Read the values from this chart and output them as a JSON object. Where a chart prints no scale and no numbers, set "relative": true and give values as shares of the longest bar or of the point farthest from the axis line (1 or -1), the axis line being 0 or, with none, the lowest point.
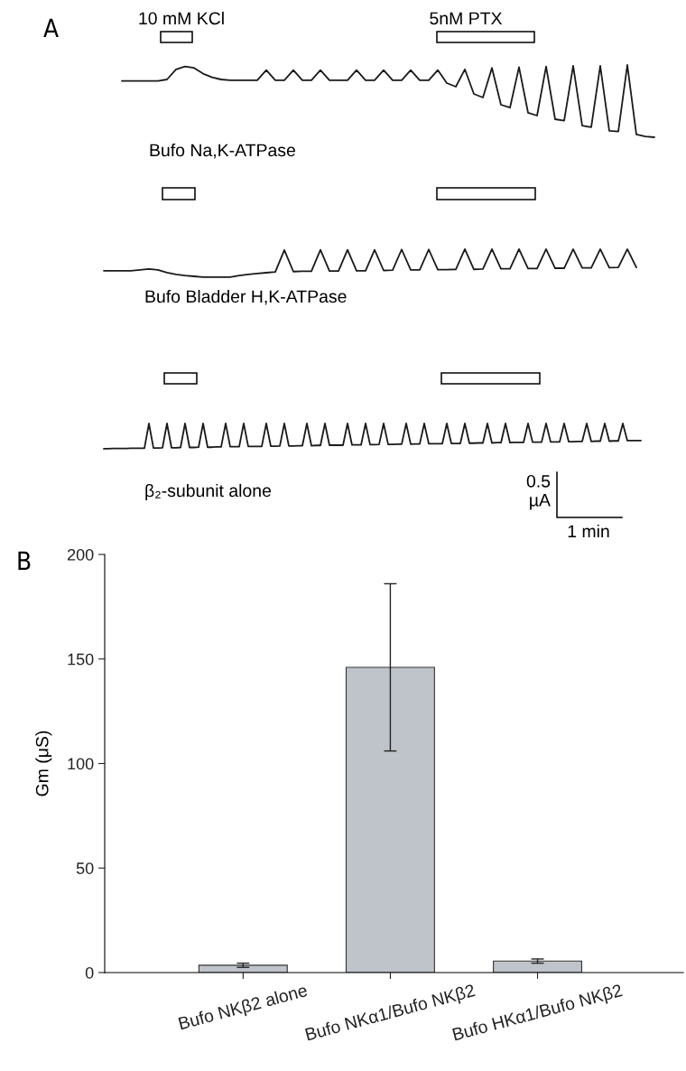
{
  "chart_data": [
    {
      "type": "line",
      "title": "A",
      "xlabel": "Bufo Na,K-ATPase",
      "relative": true,
      "annotations": [
        "10 mM KCl",
        "5nM PTX"
      ],
      "categories": [
        null,
        null,
        null,
        null,
        null,
        null,
        null,
        null,
        null,
        null,
        null,
        null,
        null,
        null,
        null,
        null,
        null,
        null,
        null,
        null,
        null,
        null,
        null,
        null,
        null,
        null,
        null,
        null,
        null,
        null,
        null,
        null,
        null,
        null,
        null,
        null,
        null,
        null,
        null,
        null,
        null,
        null,
        null,
        null,
        null,
        null,
        null,
        null,
        null,
        null,
        null,
        null,
        null,
        null,
        null,
        null,
        null,
        null,
        null,
        null
      ],
      "series": [
        {
          "color": "#1a1a1a",
          "values": [
            0.78,
            0.78,
            0.78,
            0.78,
            0.78,
            0.8,
            0.94,
            0.98,
            0.96,
            0.88,
            0.83,
            0.8,
            0.79,
            0.79,
            0.79,
            0.79,
            0.93,
            0.79,
            0.79,
            0.93,
            0.79,
            0.79,
            0.93,
            0.79,
            0.79,
            0.79,
            0.93,
            0.79,
            0.79,
            0.93,
            0.79,
            0.79,
            0.93,
            0.79,
            0.79,
            0.93,
            0.75,
            0.7,
            0.94,
            0.6,
            0.55,
            0.96,
            0.45,
            0.41,
            0.97,
            0.34,
            0.3,
            0.98,
            0.25,
            0.23,
            0.99,
            0.16,
            0.14,
            0.99,
            0.09,
            0.08,
            1,
            0.04,
            0.01,
            0
          ]
        }
      ]
    },
    {
      "type": "line",
      "xlabel": "Bufo Bladder H,K-ATPase",
      "relative": true,
      "categories": [
        null,
        null,
        null,
        null,
        null,
        null,
        null,
        null,
        null,
        null,
        null,
        null,
        null,
        null,
        null,
        null,
        null,
        null,
        null,
        null,
        null,
        null,
        null,
        null,
        null,
        null,
        null,
        null,
        null,
        null,
        null,
        null,
        null,
        null,
        null,
        null,
        null,
        null,
        null,
        null,
        null,
        null,
        null,
        null,
        null,
        null,
        null,
        null,
        null,
        null,
        null,
        null,
        null,
        null,
        null,
        null,
        null,
        null,
        null,
        null
      ],
      "series": [
        {
          "color": "#1a1a1a",
          "values": [
            0.23,
            0.23,
            0.23,
            0.23,
            0.26,
            0.29,
            0.26,
            0.16,
            0.1,
            0.06,
            0.03,
            0,
            0,
            0,
            0,
            0.06,
            0.1,
            0.13,
            0.16,
            0.19,
            0.97,
            0.2,
            0.21,
            0.21,
            0.98,
            0.22,
            0.22,
            0.98,
            0.23,
            0.23,
            0.98,
            0.24,
            0.25,
            0.99,
            0.26,
            0.26,
            0.99,
            0.27,
            0.27,
            0.28,
            1,
            0.28,
            0.29,
            1,
            0.3,
            0.3,
            1,
            0.31,
            0.31,
            1,
            0.32,
            0.32,
            1,
            0.33,
            0.33,
            1,
            0.34,
            0.35,
            1,
            0.35
          ]
        }
      ]
    },
    {
      "type": "line",
      "xlabel": "β₂-subunit alone",
      "relative": true,
      "annotations": [
        "0.5\nµA",
        "1 min"
      ],
      "categories": [
        null,
        null,
        null,
        null,
        null,
        null,
        null,
        null,
        null,
        null,
        null,
        null,
        null,
        null,
        null,
        null,
        null,
        null,
        null,
        null,
        null,
        null,
        null,
        null,
        null,
        null,
        null,
        null,
        null,
        null,
        null,
        null,
        null,
        null,
        null,
        null,
        null,
        null,
        null,
        null,
        null,
        null,
        null,
        null,
        null,
        null,
        null,
        null,
        null,
        null,
        null,
        null,
        null,
        null,
        null,
        null,
        null,
        null,
        null,
        null,
        null,
        null,
        null,
        null,
        null,
        null,
        null,
        null,
        null,
        null,
        null,
        null,
        null,
        null,
        null,
        null,
        null,
        null,
        null,
        null,
        null,
        null,
        null,
        null,
        null,
        null,
        null,
        null,
        null,
        null,
        null,
        null,
        null,
        null,
        null,
        null,
        null,
        null,
        null,
        null,
        null,
        null,
        null,
        null,
        null,
        null,
        null,
        null,
        null,
        null,
        null,
        null,
        null,
        null,
        null,
        null,
        null,
        null,
        null,
        null
      ],
      "series": [
        {
          "color": "#1a1a1a",
          "values": [
            0,
            0,
            0.01,
            0.01,
            0.01,
            0.01,
            0.02,
            0.02,
            0.02,
            0.02,
            1,
            0.03,
            0.03,
            0.04,
            1,
            0.04,
            0.04,
            0.05,
            1,
            0.05,
            0.05,
            0.06,
            1,
            0.06,
            0.06,
            0.07,
            0.07,
            1,
            0.08,
            0.08,
            0.08,
            1,
            0.09,
            0.09,
            0.09,
            0.09,
            1,
            0.1,
            0.1,
            0.11,
            1,
            0.11,
            0.11,
            0.12,
            0.12,
            1,
            0.12,
            0.13,
            0.13,
            1,
            0.14,
            0.14,
            0.14,
            0.14,
            1,
            0.15,
            0.15,
            0.15,
            1,
            0.16,
            0.16,
            0.17,
            1,
            0.17,
            0.17,
            0.18,
            0.18,
            1,
            0.18,
            0.19,
            0.19,
            1,
            0.2,
            0.2,
            0.2,
            0.2,
            1,
            0.21,
            0.21,
            0.21,
            1,
            0.22,
            0.22,
            0.23,
            0.23,
            1,
            0.23,
            0.24,
            0.24,
            1,
            0.24,
            0.25,
            0.25,
            0.25,
            1,
            0.26,
            0.26,
            0.26,
            1,
            0.27,
            0.27,
            0.27,
            1,
            0.28,
            0.28,
            0.29,
            0.29,
            1,
            0.29,
            0.3,
            0.3,
            1,
            0.3,
            0.31,
            0.31,
            1,
            0.32,
            0.32,
            0.32,
            0.32
          ]
        }
      ]
    },
    {
      "type": "bar",
      "title": "B",
      "ylabel": "Gm (μS)",
      "categories": [
        "Bufo NKβ2 alone",
        "Bufo NKα1/Bufo NKβ2",
        "Bufo HKα1/Bufo NKβ2"
      ],
      "values": [
        3.5,
        146,
        5.5
      ],
      "errors": [
        1,
        40,
        1
      ],
      "color": "#bfc3ca",
      "ylim": [
        0,
        200
      ],
      "yticks": [
        0,
        50,
        100,
        150,
        200
      ]
    }
  ]
}
